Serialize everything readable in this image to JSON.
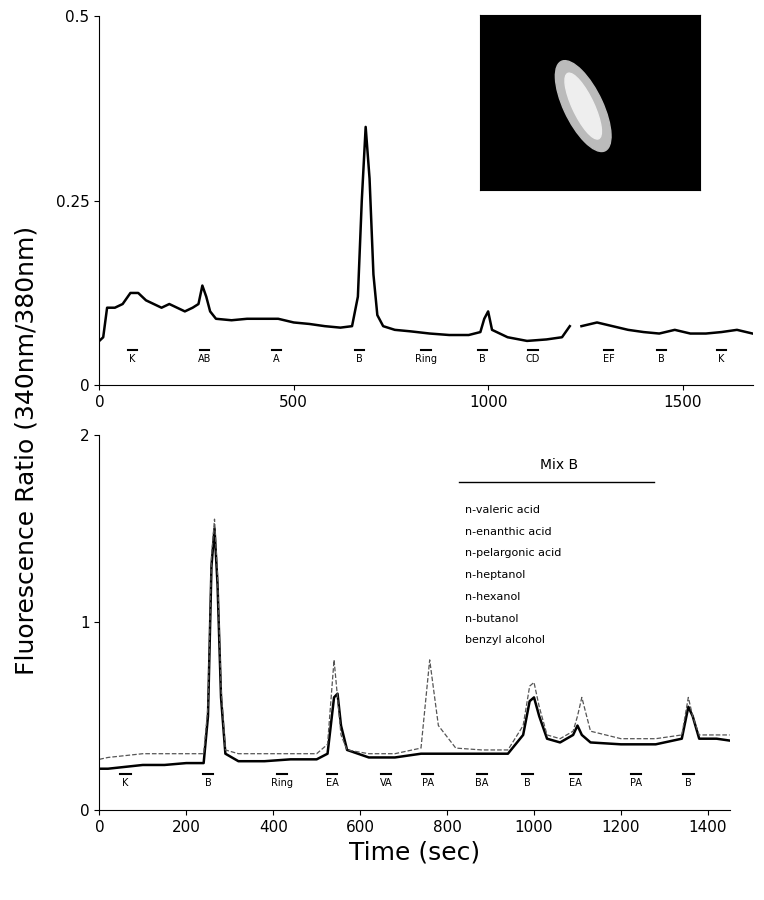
{
  "chart_data": [
    {
      "type": "line",
      "ylabel": "Fluorescence Ratio (340nm/380nm)",
      "xlim": [
        0,
        1680
      ],
      "xticks": [
        0,
        500,
        1000,
        1500
      ],
      "ylim": [
        0,
        0.5
      ],
      "yticks": [
        0,
        0.25,
        0.5
      ],
      "x": [
        0,
        10,
        20,
        40,
        60,
        80,
        100,
        120,
        140,
        160,
        180,
        200,
        220,
        240,
        255,
        265,
        275,
        285,
        300,
        340,
        380,
        420,
        460,
        500,
        540,
        580,
        620,
        650,
        665,
        675,
        685,
        695,
        705,
        715,
        730,
        760,
        800,
        850,
        900,
        950,
        980,
        990,
        1000,
        1010,
        1050,
        1100,
        1150,
        1190,
        1210,
        1225,
        1240,
        1280,
        1320,
        1360,
        1400,
        1440,
        1480,
        1520,
        1560,
        1600,
        1640,
        1680
      ],
      "series": [
        {
          "color": "#000000",
          "line_style": "solid",
          "values": [
            0.06,
            0.065,
            0.105,
            0.105,
            0.11,
            0.125,
            0.125,
            0.115,
            0.11,
            0.105,
            0.11,
            0.105,
            0.1,
            0.105,
            0.11,
            0.135,
            0.12,
            0.1,
            0.09,
            0.088,
            0.09,
            0.09,
            0.09,
            0.085,
            0.083,
            0.08,
            0.078,
            0.08,
            0.12,
            0.25,
            0.35,
            0.28,
            0.15,
            0.095,
            0.08,
            0.075,
            0.073,
            0.07,
            0.068,
            0.068,
            0.072,
            0.09,
            0.1,
            0.075,
            0.065,
            0.06,
            0.062,
            0.065,
            0.08,
            null,
            0.08,
            0.085,
            0.08,
            0.075,
            0.072,
            0.07,
            0.075,
            0.07,
            0.07,
            0.072,
            0.075,
            0.07
          ]
        }
      ],
      "stimuli": [
        {
          "label": "K",
          "x": 85
        },
        {
          "label": "AB",
          "x": 270
        },
        {
          "label": "A",
          "x": 455
        },
        {
          "label": "B",
          "x": 670
        },
        {
          "label": "Ring",
          "x": 840
        },
        {
          "label": "B",
          "x": 985
        },
        {
          "label": "CD",
          "x": 1115
        },
        {
          "label": "EF",
          "x": 1310
        },
        {
          "label": "B",
          "x": 1445
        },
        {
          "label": "K",
          "x": 1600
        }
      ]
    },
    {
      "type": "line",
      "xlabel": "Time (sec)",
      "xlim": [
        0,
        1450
      ],
      "xticks": [
        0,
        200,
        400,
        600,
        800,
        1000,
        1200,
        1400
      ],
      "ylim": [
        0,
        2
      ],
      "yticks": [
        0,
        1,
        2
      ],
      "x": [
        0,
        20,
        60,
        100,
        150,
        200,
        240,
        250,
        258,
        265,
        272,
        280,
        290,
        320,
        380,
        440,
        500,
        525,
        540,
        548,
        556,
        570,
        620,
        680,
        740,
        760,
        780,
        820,
        880,
        940,
        975,
        990,
        1000,
        1012,
        1030,
        1060,
        1090,
        1100,
        1110,
        1130,
        1200,
        1280,
        1340,
        1355,
        1365,
        1380,
        1420,
        1450
      ],
      "series": [
        {
          "color": "#000000",
          "line_style": "solid",
          "values": [
            0.22,
            0.22,
            0.23,
            0.24,
            0.24,
            0.25,
            0.25,
            0.5,
            1.3,
            1.5,
            1.2,
            0.6,
            0.3,
            0.26,
            0.26,
            0.27,
            0.27,
            0.3,
            0.6,
            0.62,
            0.45,
            0.32,
            0.28,
            0.28,
            0.3,
            0.3,
            0.3,
            0.3,
            0.3,
            0.3,
            0.4,
            0.58,
            0.6,
            0.5,
            0.38,
            0.36,
            0.4,
            0.45,
            0.4,
            0.36,
            0.35,
            0.35,
            0.38,
            0.55,
            0.5,
            0.38,
            0.38,
            0.37
          ]
        },
        {
          "color": "#555555",
          "line_style": "dashed",
          "values": [
            0.27,
            0.28,
            0.29,
            0.3,
            0.3,
            0.3,
            0.3,
            0.55,
            1.35,
            1.55,
            1.25,
            0.65,
            0.32,
            0.3,
            0.3,
            0.3,
            0.3,
            0.35,
            0.8,
            0.6,
            0.4,
            0.32,
            0.3,
            0.3,
            0.33,
            0.8,
            0.45,
            0.33,
            0.32,
            0.32,
            0.45,
            0.66,
            0.68,
            0.55,
            0.4,
            0.38,
            0.42,
            0.5,
            0.6,
            0.42,
            0.38,
            0.38,
            0.4,
            0.6,
            0.5,
            0.4,
            0.4,
            0.4
          ]
        }
      ],
      "stimuli": [
        {
          "label": "K",
          "x": 60
        },
        {
          "label": "B",
          "x": 250
        },
        {
          "label": "Ring",
          "x": 420
        },
        {
          "label": "EA",
          "x": 535
        },
        {
          "label": "VA",
          "x": 660
        },
        {
          "label": "PA",
          "x": 755
        },
        {
          "label": "BA",
          "x": 880
        },
        {
          "label": "B",
          "x": 985
        },
        {
          "label": "EA",
          "x": 1095
        },
        {
          "label": "PA",
          "x": 1235
        },
        {
          "label": "B",
          "x": 1355
        }
      ],
      "mix": {
        "title": "Mix B",
        "items": [
          "n-valeric acid",
          "n-enanthic acid",
          "n-pelargonic acid",
          "n-heptanol",
          "n-hexanol",
          "n-butanol",
          "benzyl alcohol"
        ]
      }
    }
  ]
}
